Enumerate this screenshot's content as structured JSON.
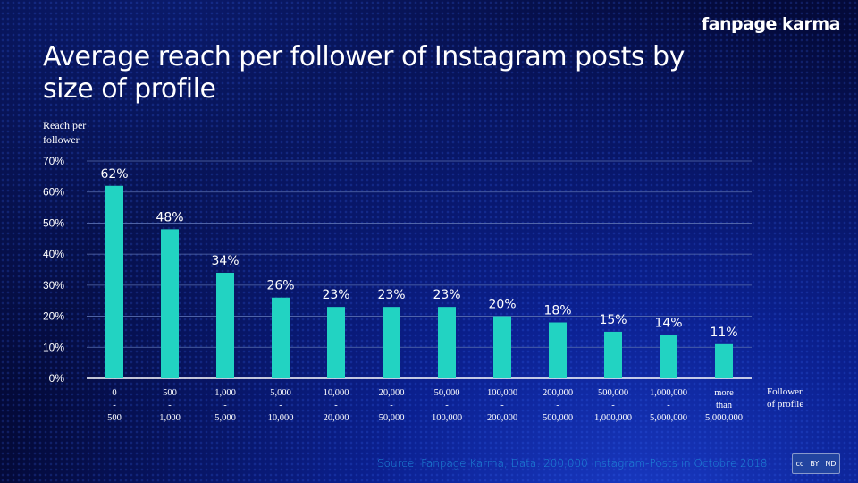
{
  "brand": "fanpage karma",
  "colors": {
    "bar": "#22d3c2",
    "grid": "#5a6fb0",
    "text": "#ffffff",
    "source": "#1e8ad8"
  },
  "chart_data": {
    "type": "bar",
    "title": "Average reach per follower of Instagram posts by size of profile",
    "ylabel": "Reach per follower",
    "xlabel": "Follower of profile",
    "ylim": [
      0,
      70
    ],
    "yticks": [
      "0%",
      "10%",
      "20%",
      "30%",
      "40%",
      "50%",
      "60%",
      "70%"
    ],
    "grid": true,
    "categories": [
      [
        "0",
        "-",
        "500"
      ],
      [
        "500",
        "-",
        "1,000"
      ],
      [
        "1,000",
        "-",
        "5,000"
      ],
      [
        "5,000",
        "-",
        "10,000"
      ],
      [
        "10,000",
        "-",
        "20,000"
      ],
      [
        "20,000",
        "-",
        "50,000"
      ],
      [
        "50,000",
        "-",
        "100,000"
      ],
      [
        "100,000",
        "-",
        "200,000"
      ],
      [
        "200,000",
        "-",
        "500,000"
      ],
      [
        "500,000",
        "-",
        "1,000,000"
      ],
      [
        "1,000,000",
        "-",
        "5,000,000"
      ],
      [
        "more",
        "than",
        "5,000,000"
      ]
    ],
    "values": [
      62,
      48,
      34,
      26,
      23,
      23,
      23,
      20,
      18,
      15,
      14,
      11
    ],
    "data_labels": [
      "62%",
      "48%",
      "34%",
      "26%",
      "23%",
      "23%",
      "23%",
      "20%",
      "18%",
      "15%",
      "14%",
      "11%"
    ]
  },
  "source": "Source: Fanpage Karma, Data: 200,000  Instagram-Posts  in Octobre 2018",
  "license": {
    "icon": "cc-by-nd-icon",
    "text": [
      "cc",
      "BY",
      "ND"
    ]
  }
}
